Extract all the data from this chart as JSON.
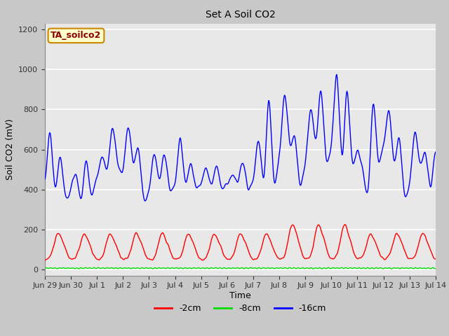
{
  "title": "Set A Soil CO2",
  "ylabel": "Soil CO2 (mV)",
  "xlabel": "Time",
  "legend_label": "TA_soilco2",
  "ylim": [
    -30,
    1230
  ],
  "yticks": [
    0,
    200,
    400,
    600,
    800,
    1000,
    1200
  ],
  "fig_bg_color": "#c8c8c8",
  "plot_bg_color": "#e8e8e8",
  "line_2cm_color": "#ff0000",
  "line_8cm_color": "#00dd00",
  "line_16cm_color": "#0000ff",
  "legend_entries": [
    "-2cm",
    "-8cm",
    "-16cm"
  ],
  "x_tick_labels": [
    "Jun 29",
    "Jun 30",
    "Jul 1",
    "Jul 2",
    "Jul 3",
    "Jul 4",
    "Jul 5",
    "Jul 6",
    "Jul 7",
    "Jul 8",
    "Jul 9",
    "Jul 10",
    "Jul 11",
    "Jul 12",
    "Jul 13",
    "Jul 14"
  ],
  "x_tick_positions": [
    0,
    1,
    2,
    3,
    4,
    5,
    6,
    7,
    8,
    9,
    10,
    11,
    12,
    13,
    14,
    15
  ]
}
